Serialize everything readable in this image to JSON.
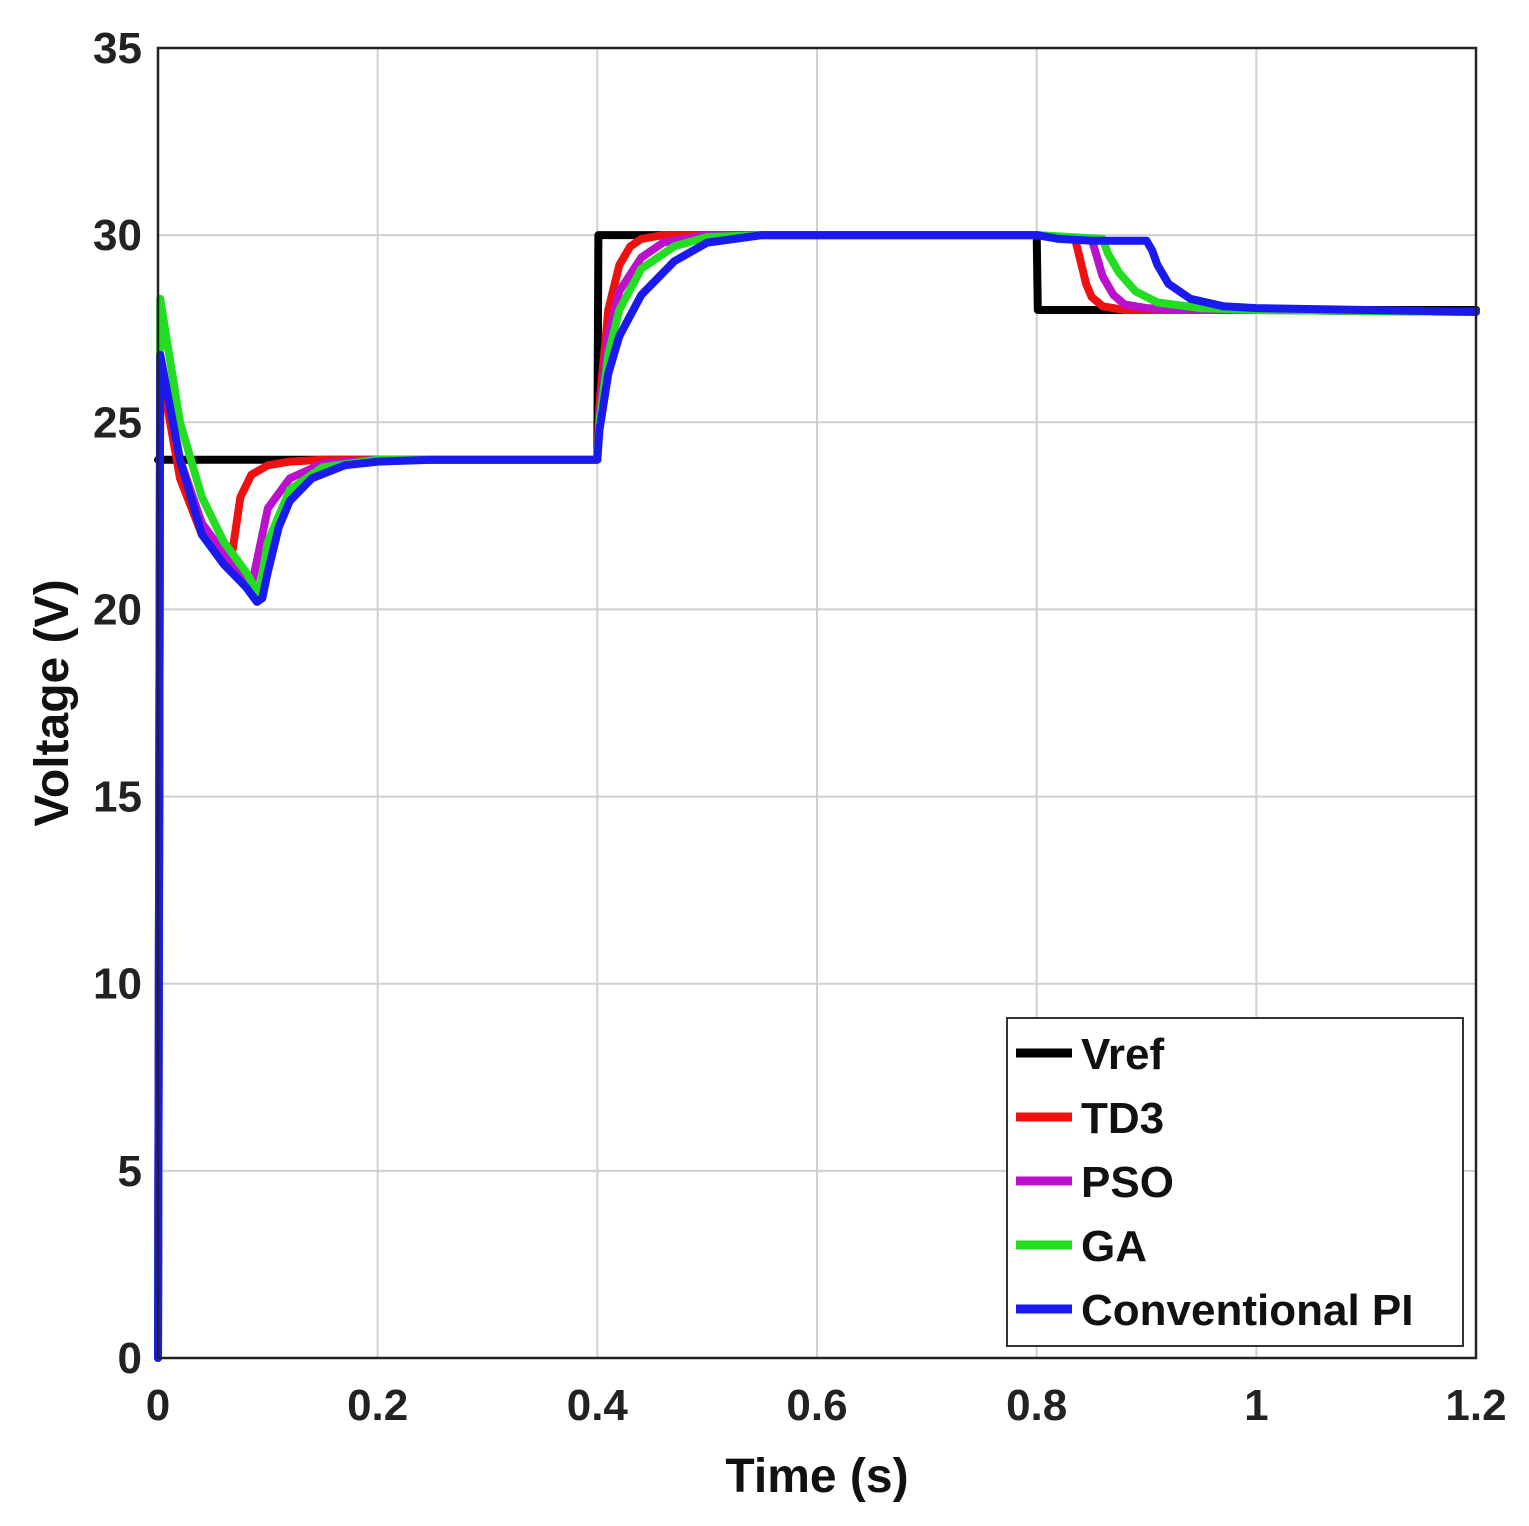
{
  "chart_data": {
    "type": "line",
    "title": "",
    "xlabel": "Time (s)",
    "ylabel": "Voltage (V)",
    "xlim": [
      0,
      1.2
    ],
    "ylim": [
      0,
      35
    ],
    "xticks": [
      0,
      0.2,
      0.4,
      0.6,
      0.8,
      1,
      1.2
    ],
    "xtick_labels": [
      "0",
      "0.2",
      "0.4",
      "0.6",
      "0.8",
      "1",
      "1.2"
    ],
    "yticks": [
      0,
      5,
      10,
      15,
      20,
      25,
      30,
      35
    ],
    "ytick_labels": [
      "0",
      "5",
      "10",
      "15",
      "20",
      "25",
      "30",
      "35"
    ],
    "grid": true,
    "legend_position": "bottom-right",
    "series": [
      {
        "name": "Vref",
        "color": "#000000",
        "x": [
          0,
          0.001,
          0.4,
          0.401,
          0.8,
          0.801,
          1.2
        ],
        "y": [
          24,
          24,
          24,
          30,
          30,
          28,
          28
        ]
      },
      {
        "name": "TD3",
        "color": "#ee1111",
        "x": [
          0,
          0.002,
          0.02,
          0.04,
          0.06,
          0.068,
          0.075,
          0.085,
          0.1,
          0.12,
          0.15,
          0.2,
          0.4,
          0.402,
          0.41,
          0.42,
          0.43,
          0.44,
          0.46,
          0.5,
          0.6,
          0.8,
          0.835,
          0.84,
          0.845,
          0.85,
          0.86,
          0.88,
          0.92,
          1.0,
          1.2
        ],
        "y": [
          0,
          26.5,
          23.5,
          22.0,
          21.3,
          21.6,
          23.0,
          23.6,
          23.85,
          23.95,
          24.0,
          24.0,
          24.0,
          25.5,
          28.0,
          29.2,
          29.7,
          29.9,
          30.0,
          30.0,
          30.0,
          30.0,
          29.9,
          29.3,
          28.7,
          28.35,
          28.1,
          28.0,
          28.0,
          28.0,
          27.95
        ]
      },
      {
        "name": "PSO",
        "color": "#bb11cc",
        "x": [
          0,
          0.002,
          0.02,
          0.04,
          0.06,
          0.085,
          0.09,
          0.1,
          0.12,
          0.15,
          0.2,
          0.4,
          0.402,
          0.41,
          0.42,
          0.44,
          0.46,
          0.5,
          0.6,
          0.8,
          0.85,
          0.855,
          0.86,
          0.87,
          0.88,
          0.9,
          0.95,
          1.0,
          1.2
        ],
        "y": [
          0,
          26.8,
          24.0,
          22.3,
          21.5,
          20.6,
          21.3,
          22.7,
          23.5,
          23.9,
          24.0,
          24.0,
          25.2,
          27.3,
          28.5,
          29.4,
          29.8,
          30.0,
          30.0,
          30.0,
          29.9,
          29.4,
          28.9,
          28.4,
          28.15,
          28.05,
          28.0,
          28.0,
          27.95
        ]
      },
      {
        "name": "GA",
        "color": "#22dd22",
        "x": [
          0,
          0.002,
          0.02,
          0.04,
          0.06,
          0.08,
          0.092,
          0.1,
          0.12,
          0.15,
          0.2,
          0.4,
          0.402,
          0.41,
          0.42,
          0.44,
          0.47,
          0.5,
          0.55,
          0.6,
          0.8,
          0.86,
          0.865,
          0.875,
          0.89,
          0.91,
          0.95,
          1.0,
          1.2
        ],
        "y": [
          0,
          28.3,
          25.0,
          23.0,
          21.8,
          21.0,
          20.4,
          21.8,
          23.2,
          23.8,
          24.0,
          24.0,
          25.0,
          26.8,
          28.0,
          29.1,
          29.7,
          29.95,
          30.0,
          30.0,
          30.0,
          29.9,
          29.5,
          29.0,
          28.5,
          28.2,
          28.05,
          28.0,
          27.95
        ]
      },
      {
        "name": "Conventional PI",
        "color": "#1a1aee",
        "x": [
          0,
          0.002,
          0.02,
          0.04,
          0.06,
          0.08,
          0.09,
          0.095,
          0.1,
          0.11,
          0.12,
          0.14,
          0.17,
          0.2,
          0.25,
          0.4,
          0.402,
          0.41,
          0.42,
          0.44,
          0.47,
          0.5,
          0.55,
          0.6,
          0.8,
          0.82,
          0.85,
          0.9,
          0.905,
          0.91,
          0.92,
          0.94,
          0.97,
          1.0,
          1.1,
          1.2
        ],
        "y": [
          0,
          26.8,
          24.0,
          22.0,
          21.2,
          20.6,
          20.2,
          20.3,
          21.0,
          22.2,
          22.9,
          23.5,
          23.85,
          23.95,
          24.0,
          24.0,
          24.8,
          26.3,
          27.3,
          28.4,
          29.3,
          29.8,
          30.0,
          30.0,
          30.0,
          29.9,
          29.85,
          29.85,
          29.6,
          29.2,
          28.7,
          28.3,
          28.1,
          28.05,
          28.0,
          27.95
        ]
      }
    ]
  }
}
